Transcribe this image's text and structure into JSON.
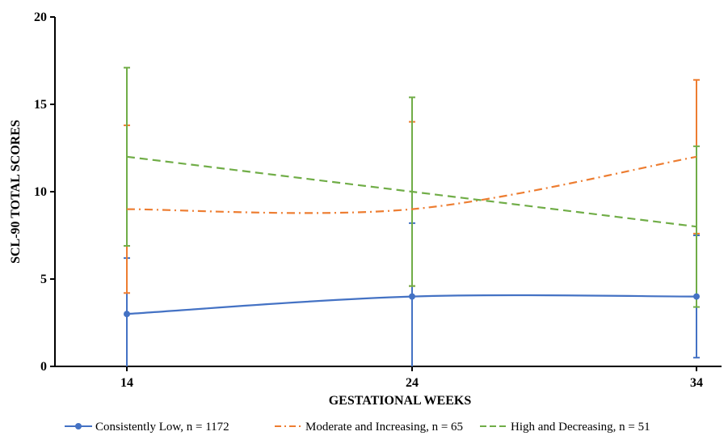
{
  "chart_data": {
    "type": "line",
    "title": "",
    "xlabel": "GESTATIONAL WEEKS",
    "ylabel": "SCL-90 TOTAL SCORES",
    "x": [
      14,
      24,
      34
    ],
    "x_tick_labels": [
      "14",
      "24",
      "34"
    ],
    "y_ticks": [
      0,
      5,
      10,
      15,
      20
    ],
    "ylim": [
      0,
      20
    ],
    "grid": false,
    "legend_position": "bottom",
    "series": [
      {
        "name": "Consistently Low, n = 1172",
        "color": "#4472C4",
        "dash": "solid",
        "marker": "circle",
        "values": [
          3,
          4,
          4
        ],
        "error_upper": [
          6.2,
          8.2,
          7.5
        ],
        "error_lower": [
          0,
          0,
          0.5
        ]
      },
      {
        "name": "Moderate and Increasing, n = 65",
        "color": "#ED7D31",
        "dash": "dash-dot",
        "marker": "none",
        "values": [
          9,
          9,
          12
        ],
        "error_upper": [
          13.8,
          14.0,
          16.4
        ],
        "error_lower": [
          4.2,
          4.6,
          7.6
        ]
      },
      {
        "name": "High and Decreasing, n = 51",
        "color": "#70AD47",
        "dash": "dash",
        "marker": "none",
        "values": [
          12,
          10,
          8
        ],
        "error_upper": [
          17.1,
          15.4,
          12.6
        ],
        "error_lower": [
          6.9,
          4.6,
          3.4
        ]
      }
    ]
  }
}
